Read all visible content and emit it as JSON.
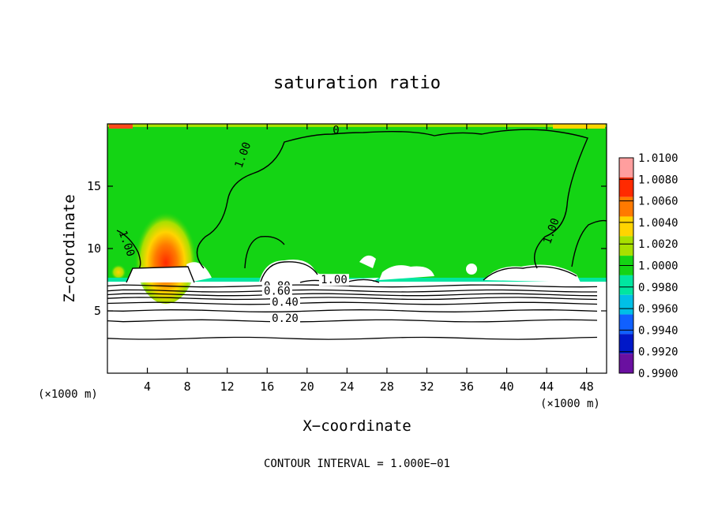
{
  "chart_data": {
    "type": "heatmap",
    "title": "saturation ratio",
    "xlabel": "X−coordinate",
    "ylabel": "Z−coordinate",
    "x_unit_left": "(×1000 m)",
    "x_unit_right": "(×1000 m)",
    "footer": "CONTOUR INTERVAL = 1.000E−01",
    "xlim": [
      0,
      50
    ],
    "ylim": [
      0,
      20
    ],
    "x_ticks": [
      4,
      8,
      12,
      16,
      20,
      24,
      28,
      32,
      36,
      40,
      44,
      48
    ],
    "y_ticks": [
      5,
      10,
      15
    ],
    "colorbar": {
      "levels": [
        "1.0100",
        "1.0080",
        "1.0060",
        "1.0040",
        "1.0020",
        "1.0000",
        "0.9980",
        "0.9960",
        "0.9940",
        "0.9920",
        "0.9900"
      ],
      "colors": [
        "#ff9e9e",
        "#ff2a00",
        "#ff7a00",
        "#ffd400",
        "#a8e000",
        "#14d414",
        "#00e6a0",
        "#00bfe6",
        "#1060ff",
        "#0018c8",
        "#6a10a0"
      ]
    },
    "contour_labels": [
      {
        "text": "1.00",
        "x": 13.9,
        "z": 17.4
      },
      {
        "text": "1.00",
        "x": 1.6,
        "z": 10.3
      },
      {
        "text": "1.00",
        "x": 44.8,
        "z": 11.3
      },
      {
        "text": "0",
        "x": 22.9,
        "z": 19.2
      },
      {
        "text": "1.00",
        "x": 22.7,
        "z": 7.2
      },
      {
        "text": "0.80",
        "x": 17.0,
        "z": 6.7
      },
      {
        "text": "0.60",
        "x": 17.0,
        "z": 6.3
      },
      {
        "text": "0.40",
        "x": 17.8,
        "z": 5.4
      },
      {
        "text": "0.20",
        "x": 17.8,
        "z": 4.1
      }
    ],
    "low_contours_z": [
      7.0,
      6.6,
      6.3,
      6.0,
      5.6,
      5.0,
      4.2,
      2.8
    ]
  }
}
